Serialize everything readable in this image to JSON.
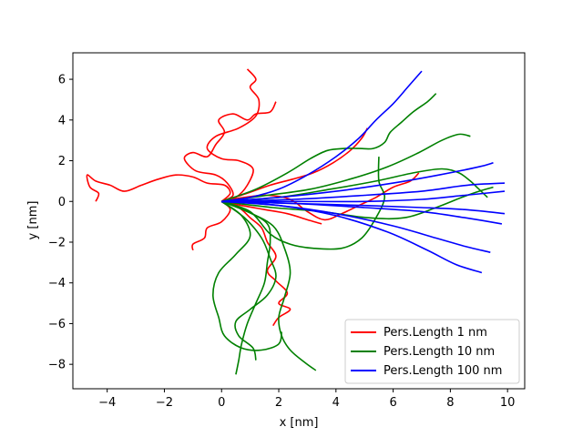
{
  "chart_data": {
    "type": "line",
    "xlabel": "x [nm]",
    "ylabel": "y [nm]",
    "xlim": [
      -5.2,
      10.6
    ],
    "ylim": [
      -9.2,
      7.3
    ],
    "xticks": [
      -4,
      -2,
      0,
      2,
      4,
      6,
      8,
      10
    ],
    "yticks": [
      -8,
      -6,
      -4,
      -2,
      0,
      2,
      4,
      6
    ],
    "grid": false,
    "legend_position": "bottom-right",
    "series": [
      {
        "name": "Pers.Length 1 nm",
        "color": "#ff0000",
        "paths": [
          [
            [
              0,
              0
            ],
            [
              0.3,
              0.4
            ],
            [
              0.1,
              0.8
            ],
            [
              -0.5,
              0.9
            ],
            [
              -1.0,
              1.2
            ],
            [
              -1.6,
              1.3
            ],
            [
              -2.2,
              1.1
            ],
            [
              -2.8,
              0.8
            ],
            [
              -3.4,
              0.5
            ],
            [
              -3.9,
              0.8
            ],
            [
              -4.4,
              1.0
            ],
            [
              -4.7,
              1.3
            ],
            [
              -4.6,
              0.7
            ],
            [
              -4.3,
              0.4
            ],
            [
              -4.4,
              0.0
            ]
          ],
          [
            [
              0,
              0
            ],
            [
              0.4,
              0.3
            ],
            [
              0.2,
              0.9
            ],
            [
              -0.2,
              1.3
            ],
            [
              -0.9,
              1.5
            ],
            [
              -1.3,
              2.1
            ],
            [
              -1.0,
              2.4
            ],
            [
              -0.5,
              2.2
            ],
            [
              -0.2,
              2.8
            ],
            [
              0.1,
              3.4
            ],
            [
              -0.1,
              4.0
            ],
            [
              0.4,
              4.3
            ],
            [
              0.9,
              4.0
            ],
            [
              1.2,
              4.3
            ],
            [
              1.7,
              4.4
            ],
            [
              1.9,
              4.9
            ]
          ],
          [
            [
              0,
              0
            ],
            [
              0.5,
              0.2
            ],
            [
              0.9,
              0.8
            ],
            [
              1.1,
              1.6
            ],
            [
              0.6,
              2.0
            ],
            [
              0.0,
              2.1
            ],
            [
              -0.5,
              2.6
            ],
            [
              -0.2,
              3.2
            ],
            [
              0.6,
              3.6
            ],
            [
              1.2,
              4.2
            ],
            [
              1.3,
              5.0
            ],
            [
              1.0,
              5.6
            ],
            [
              1.2,
              6.0
            ],
            [
              0.9,
              6.5
            ]
          ],
          [
            [
              0,
              0
            ],
            [
              0.3,
              -0.4
            ],
            [
              0.0,
              -1.0
            ],
            [
              -0.5,
              -1.3
            ],
            [
              -0.6,
              -1.8
            ],
            [
              -1.0,
              -2.1
            ],
            [
              -1.0,
              -2.4
            ]
          ],
          [
            [
              0,
              0
            ],
            [
              0.6,
              -0.3
            ],
            [
              1.0,
              -0.8
            ],
            [
              1.4,
              -1.3
            ],
            [
              1.6,
              -2.0
            ],
            [
              1.9,
              -2.7
            ],
            [
              1.6,
              -3.4
            ],
            [
              1.9,
              -3.9
            ],
            [
              2.3,
              -4.5
            ],
            [
              2.0,
              -5.0
            ],
            [
              2.4,
              -5.3
            ],
            [
              2.0,
              -5.7
            ],
            [
              1.8,
              -6.1
            ]
          ],
          [
            [
              0,
              0
            ],
            [
              0.8,
              0.2
            ],
            [
              1.6,
              0.3
            ],
            [
              2.4,
              0.1
            ],
            [
              3.0,
              -0.5
            ],
            [
              3.6,
              -0.9
            ],
            [
              4.2,
              -0.6
            ],
            [
              4.8,
              -0.2
            ],
            [
              5.4,
              0.2
            ],
            [
              6.0,
              0.7
            ],
            [
              6.6,
              1.0
            ],
            [
              6.9,
              1.4
            ]
          ],
          [
            [
              0,
              0
            ],
            [
              0.9,
              0.4
            ],
            [
              1.7,
              0.8
            ],
            [
              2.5,
              1.1
            ],
            [
              3.2,
              1.4
            ],
            [
              3.9,
              1.9
            ],
            [
              4.5,
              2.5
            ],
            [
              4.9,
              3.1
            ],
            [
              5.1,
              3.6
            ]
          ],
          [
            [
              0,
              0
            ],
            [
              0.7,
              -0.2
            ],
            [
              1.5,
              -0.4
            ],
            [
              2.3,
              -0.6
            ],
            [
              3.0,
              -0.9
            ],
            [
              3.5,
              -1.1
            ]
          ]
        ]
      },
      {
        "name": "Pers.Length 10 nm",
        "color": "#008000",
        "paths": [
          [
            [
              0,
              0
            ],
            [
              1.2,
              0.6
            ],
            [
              2.3,
              1.4
            ],
            [
              3.1,
              2.1
            ],
            [
              3.7,
              2.5
            ],
            [
              4.3,
              2.6
            ],
            [
              4.8,
              2.6
            ],
            [
              5.3,
              2.6
            ],
            [
              5.7,
              2.9
            ],
            [
              5.9,
              3.4
            ],
            [
              6.3,
              3.9
            ],
            [
              6.7,
              4.4
            ],
            [
              7.2,
              4.9
            ],
            [
              7.5,
              5.3
            ]
          ],
          [
            [
              0,
              0
            ],
            [
              1.6,
              0.3
            ],
            [
              3.1,
              0.6
            ],
            [
              4.5,
              1.1
            ],
            [
              5.8,
              1.7
            ],
            [
              6.9,
              2.4
            ],
            [
              7.7,
              3.0
            ],
            [
              8.3,
              3.3
            ],
            [
              8.7,
              3.2
            ]
          ],
          [
            [
              0,
              0
            ],
            [
              2.0,
              0.2
            ],
            [
              3.8,
              0.6
            ],
            [
              5.4,
              1.0
            ],
            [
              6.7,
              1.4
            ],
            [
              7.7,
              1.6
            ],
            [
              8.3,
              1.4
            ],
            [
              8.7,
              1.0
            ],
            [
              9.0,
              0.6
            ],
            [
              9.3,
              0.2
            ]
          ],
          [
            [
              0,
              0
            ],
            [
              1.8,
              -0.3
            ],
            [
              3.5,
              -0.5
            ],
            [
              5.1,
              -0.8
            ],
            [
              6.4,
              -0.8
            ],
            [
              7.5,
              -0.3
            ],
            [
              8.4,
              0.2
            ],
            [
              9.0,
              0.5
            ],
            [
              9.5,
              0.7
            ]
          ],
          [
            [
              0,
              0
            ],
            [
              1.0,
              -0.5
            ],
            [
              1.7,
              -1.6
            ],
            [
              2.4,
              -2.1
            ],
            [
              3.2,
              -2.3
            ],
            [
              4.2,
              -2.3
            ],
            [
              4.9,
              -1.8
            ],
            [
              5.4,
              -0.8
            ],
            [
              5.7,
              0.2
            ],
            [
              5.5,
              1.0
            ],
            [
              5.5,
              2.2
            ]
          ],
          [
            [
              0,
              0
            ],
            [
              0.8,
              -0.8
            ],
            [
              1.4,
              -1.8
            ],
            [
              1.7,
              -2.8
            ],
            [
              1.9,
              -3.7
            ],
            [
              1.6,
              -4.6
            ],
            [
              1.0,
              -5.3
            ],
            [
              0.5,
              -5.9
            ],
            [
              0.6,
              -6.6
            ],
            [
              1.1,
              -7.2
            ],
            [
              1.2,
              -7.8
            ]
          ],
          [
            [
              0,
              0
            ],
            [
              0.9,
              -0.5
            ],
            [
              1.8,
              -1.2
            ],
            [
              2.2,
              -2.3
            ],
            [
              2.4,
              -3.5
            ],
            [
              2.2,
              -4.7
            ],
            [
              2.0,
              -5.7
            ],
            [
              2.1,
              -6.6
            ],
            [
              2.4,
              -7.3
            ],
            [
              2.9,
              -7.9
            ],
            [
              3.3,
              -8.3
            ]
          ],
          [
            [
              0,
              0
            ],
            [
              0.7,
              -0.7
            ],
            [
              1.0,
              -1.7
            ],
            [
              0.5,
              -2.6
            ],
            [
              -0.1,
              -3.5
            ],
            [
              -0.3,
              -4.6
            ],
            [
              -0.1,
              -5.7
            ],
            [
              0.1,
              -6.6
            ],
            [
              0.7,
              -7.2
            ],
            [
              1.4,
              -7.3
            ],
            [
              2.0,
              -7.0
            ],
            [
              2.1,
              -6.4
            ]
          ],
          [
            [
              0,
              0
            ],
            [
              0.9,
              -0.5
            ],
            [
              1.6,
              -1.1
            ],
            [
              1.7,
              -2.0
            ],
            [
              1.6,
              -3.0
            ],
            [
              1.5,
              -4.0
            ],
            [
              1.2,
              -5.0
            ],
            [
              0.9,
              -6.0
            ],
            [
              0.7,
              -7.0
            ],
            [
              0.6,
              -7.8
            ],
            [
              0.5,
              -8.5
            ]
          ]
        ]
      },
      {
        "name": "Pers.Length 100 nm",
        "color": "#0000ff",
        "paths": [
          [
            [
              0,
              0
            ],
            [
              1.0,
              0.2
            ],
            [
              2.0,
              0.6
            ],
            [
              3.0,
              1.3
            ],
            [
              4.0,
              2.2
            ],
            [
              4.8,
              3.1
            ],
            [
              5.4,
              4.0
            ],
            [
              6.0,
              4.8
            ],
            [
              6.5,
              5.6
            ],
            [
              7.0,
              6.4
            ]
          ],
          [
            [
              0,
              0
            ],
            [
              2.0,
              0.2
            ],
            [
              4.0,
              0.5
            ],
            [
              6.0,
              0.9
            ],
            [
              7.6,
              1.3
            ],
            [
              9.0,
              1.7
            ],
            [
              9.5,
              1.9
            ]
          ],
          [
            [
              0,
              0
            ],
            [
              2.5,
              0.1
            ],
            [
              5.0,
              0.3
            ],
            [
              7.0,
              0.5
            ],
            [
              8.6,
              0.8
            ],
            [
              9.9,
              0.9
            ]
          ],
          [
            [
              0,
              0
            ],
            [
              2.5,
              0.0
            ],
            [
              5.0,
              0.0
            ],
            [
              7.0,
              0.1
            ],
            [
              8.5,
              0.3
            ],
            [
              9.9,
              0.5
            ]
          ],
          [
            [
              0,
              0
            ],
            [
              2.5,
              -0.1
            ],
            [
              5.0,
              -0.2
            ],
            [
              7.0,
              -0.3
            ],
            [
              8.5,
              -0.4
            ],
            [
              9.9,
              -0.6
            ]
          ],
          [
            [
              0,
              0
            ],
            [
              2.5,
              -0.1
            ],
            [
              5.0,
              -0.3
            ],
            [
              7.0,
              -0.5
            ],
            [
              8.5,
              -0.8
            ],
            [
              9.8,
              -1.1
            ]
          ],
          [
            [
              0,
              0
            ],
            [
              2.0,
              -0.2
            ],
            [
              4.0,
              -0.6
            ],
            [
              6.0,
              -1.2
            ],
            [
              7.5,
              -1.8
            ],
            [
              8.5,
              -2.2
            ],
            [
              9.4,
              -2.5
            ]
          ],
          [
            [
              0,
              0
            ],
            [
              2.0,
              -0.2
            ],
            [
              4.0,
              -0.7
            ],
            [
              5.8,
              -1.5
            ],
            [
              7.2,
              -2.4
            ],
            [
              8.2,
              -3.1
            ],
            [
              9.1,
              -3.5
            ]
          ]
        ]
      }
    ]
  }
}
